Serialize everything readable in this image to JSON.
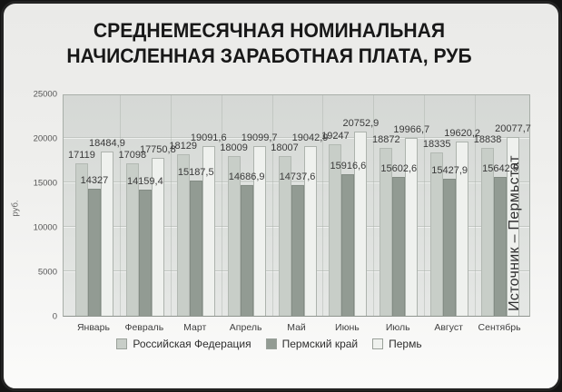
{
  "title": {
    "line1": "СРЕДНЕМЕСЯЧНАЯ НОМИНАЛЬНАЯ",
    "line2": "НАЧИСЛЕННАЯ ЗАРАБОТНАЯ ПЛАТА, РУБ"
  },
  "source_note": "Источник – Пермьстат",
  "chart_data": {
    "type": "bar",
    "title": "Среднемесячная номинальная начисленная заработная плата, руб",
    "ylabel": "руб.",
    "ylim": [
      0,
      25000
    ],
    "yticks": [
      0,
      5000,
      10000,
      15000,
      20000,
      25000
    ],
    "grid": true,
    "legend_position": "bottom",
    "decimal_separator": ",",
    "categories": [
      "Январь",
      "Февраль",
      "Март",
      "Апрель",
      "Май",
      "Июнь",
      "Июль",
      "Август",
      "Сентябрь"
    ],
    "series": [
      {
        "name": "Российская Федерация",
        "color": "#c8cec8",
        "border_color": "#b2b8b2",
        "values": [
          17119,
          17098,
          18129,
          18009,
          18007,
          19247,
          18872,
          18335,
          18838
        ]
      },
      {
        "name": "Пермский край",
        "color": "#929b93",
        "border_color": "#838c84",
        "values": [
          14327,
          14159.4,
          15187.5,
          14686.9,
          14737.6,
          15916.6,
          15602.6,
          15427.9,
          15642.6
        ]
      },
      {
        "name": "Пермь",
        "color": "#eff1ee",
        "border_color": "#adb3ad",
        "values": [
          18484.9,
          17750.8,
          19091.6,
          19099.7,
          19042.9,
          20752.9,
          19966.7,
          19620.2,
          20077.7
        ]
      }
    ]
  }
}
